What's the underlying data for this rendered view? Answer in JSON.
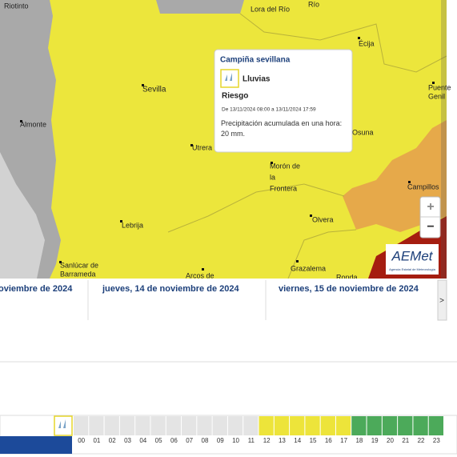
{
  "map": {
    "places": [
      {
        "lines": [
          "Riotinto"
        ]
      },
      {
        "lines": [
          "Lora del Río"
        ]
      },
      {
        "lines": [
          "Río"
        ]
      },
      {
        "lines": [
          "Écija"
        ]
      },
      {
        "lines": [
          "Sevilla"
        ]
      },
      {
        "lines": [
          "Almonte"
        ]
      },
      {
        "lines": [
          "Utrera"
        ]
      },
      {
        "lines": [
          "Osuna"
        ]
      },
      {
        "lines": [
          "Puente",
          "Genil"
        ]
      },
      {
        "lines": [
          "Morón de",
          "la",
          "Frontera"
        ]
      },
      {
        "lines": [
          "Campillos"
        ]
      },
      {
        "lines": [
          "Olvera"
        ]
      },
      {
        "lines": [
          "Lebrija"
        ]
      },
      {
        "lines": [
          "Sanlúcar de",
          "Barrameda"
        ]
      },
      {
        "lines": [
          "Grazalema"
        ]
      },
      {
        "lines": [
          "Arcos de"
        ]
      },
      {
        "lines": [
          "Ronda"
        ]
      }
    ],
    "zoom_in": "+",
    "zoom_out": "−",
    "logo": {
      "name": "AEMet",
      "subtitle": "Agencia Estatal de Meteorología"
    }
  },
  "popup": {
    "title": "Campiña sevillana",
    "phenomenon": "Lluvias",
    "level": "Riesgo",
    "period": "De 13/11/2024 08:00 a 13/11/2024 17:59",
    "description": "Precipitación acumulada en una hora: 20 mm."
  },
  "days": [
    "oviembre de 2024",
    "jueves, 14 de noviembre de 2024",
    "viernes, 15 de noviembre de 2024"
  ],
  "next": ">",
  "hours": [
    {
      "label": "00",
      "color": "#e4e4e4"
    },
    {
      "label": "01",
      "color": "#e4e4e4"
    },
    {
      "label": "02",
      "color": "#e4e4e4"
    },
    {
      "label": "03",
      "color": "#e4e4e4"
    },
    {
      "label": "04",
      "color": "#e4e4e4"
    },
    {
      "label": "05",
      "color": "#e4e4e4"
    },
    {
      "label": "06",
      "color": "#e4e4e4"
    },
    {
      "label": "07",
      "color": "#e4e4e4"
    },
    {
      "label": "08",
      "color": "#e4e4e4"
    },
    {
      "label": "09",
      "color": "#e4e4e4"
    },
    {
      "label": "10",
      "color": "#e4e4e4"
    },
    {
      "label": "11",
      "color": "#e4e4e4"
    },
    {
      "label": "12",
      "color": "#ede43a"
    },
    {
      "label": "13",
      "color": "#ede43a"
    },
    {
      "label": "14",
      "color": "#ede43a"
    },
    {
      "label": "15",
      "color": "#ede43a"
    },
    {
      "label": "16",
      "color": "#ede43a"
    },
    {
      "label": "17",
      "color": "#ede43a"
    },
    {
      "label": "18",
      "color": "#4caa5a"
    },
    {
      "label": "19",
      "color": "#4caa5a"
    },
    {
      "label": "20",
      "color": "#4caa5a"
    },
    {
      "label": "21",
      "color": "#4caa5a"
    },
    {
      "label": "22",
      "color": "#4caa5a"
    },
    {
      "label": "23",
      "color": "#4caa5a"
    }
  ]
}
